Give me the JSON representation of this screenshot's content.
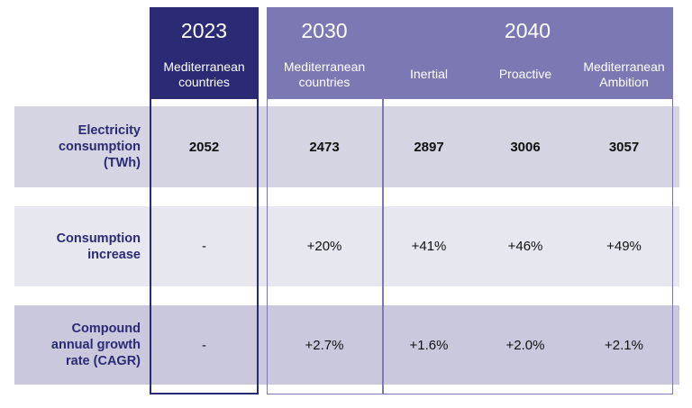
{
  "columns": {
    "y2023": {
      "year": "2023",
      "sub": [
        "Mediterranean",
        "countries"
      ]
    },
    "y2030": {
      "year": "2030",
      "sub": [
        "Mediterranean",
        "countries"
      ]
    },
    "y2040": {
      "year": "2040",
      "scenarios": [
        {
          "label": [
            "Inertial"
          ]
        },
        {
          "label": [
            "Proactive"
          ]
        },
        {
          "label": [
            "Mediterranean",
            "Ambition"
          ]
        }
      ]
    }
  },
  "rows": [
    {
      "label": [
        "Electricity",
        "consumption",
        "(TWh)"
      ],
      "values": [
        "2052",
        "2473",
        "2897",
        "3006",
        "3057"
      ]
    },
    {
      "label": [
        "Consumption",
        "increase"
      ],
      "values": [
        "-",
        "+20%",
        "+41%",
        "+46%",
        "+49%"
      ]
    },
    {
      "label": [
        "Compound",
        "annual growth",
        "rate (CAGR)"
      ],
      "values": [
        "-",
        "+2.7%",
        "+1.6%",
        "+2.0%",
        "+2.1%"
      ]
    }
  ],
  "colors": {
    "dark": "#2b2a75",
    "mid": "#7b78b4"
  }
}
